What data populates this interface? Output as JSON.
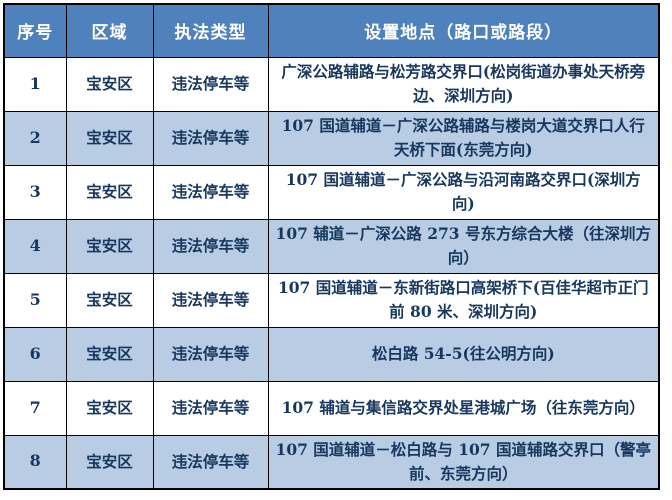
{
  "colors": {
    "header_bg": "#4F81BD",
    "header_text": "#FFFFFF",
    "row_alt_bg": "#B8CCE4",
    "row_bg": "#FFFFFF",
    "text_navy": "#17375E",
    "border_color": "#000000"
  },
  "table": {
    "headers": {
      "no": "序号",
      "region": "区域",
      "type": "执法类型",
      "location": "设置地点（路口或路段）"
    },
    "rows": [
      {
        "no": "1",
        "region": "宝安区",
        "type": "违法停车等",
        "location": "广深公路辅路与松芳路交界口(松岗街道办事处天桥旁边、深圳方向)"
      },
      {
        "no": "2",
        "region": "宝安区",
        "type": "违法停车等",
        "location": "107 国道辅道－广深公路辅路与楼岗大道交界口人行天桥下面(东莞方向)"
      },
      {
        "no": "3",
        "region": "宝安区",
        "type": "违法停车等",
        "location": "107 国道辅道－广深公路与沿河南路交界口(深圳方向)"
      },
      {
        "no": "4",
        "region": "宝安区",
        "type": "违法停车等",
        "location": "107 辅道－广深公路 273 号东方综合大楼（往深圳方向）"
      },
      {
        "no": "5",
        "region": "宝安区",
        "type": "违法停车等",
        "location": "107 国道辅道－东新街路口高架桥下(百佳华超市正门前 80 米、深圳方向)"
      },
      {
        "no": "6",
        "region": "宝安区",
        "type": "违法停车等",
        "location": "松白路 54-5(往公明方向)"
      },
      {
        "no": "7",
        "region": "宝安区",
        "type": "违法停车等",
        "location": "107 辅道与集信路交界处星港城广场（往东莞方向）"
      },
      {
        "no": "8",
        "region": "宝安区",
        "type": "违法停车等",
        "location": "107 国道辅道－松白路与 107 国道辅路交界口（警亭前、东莞方向）"
      }
    ]
  }
}
